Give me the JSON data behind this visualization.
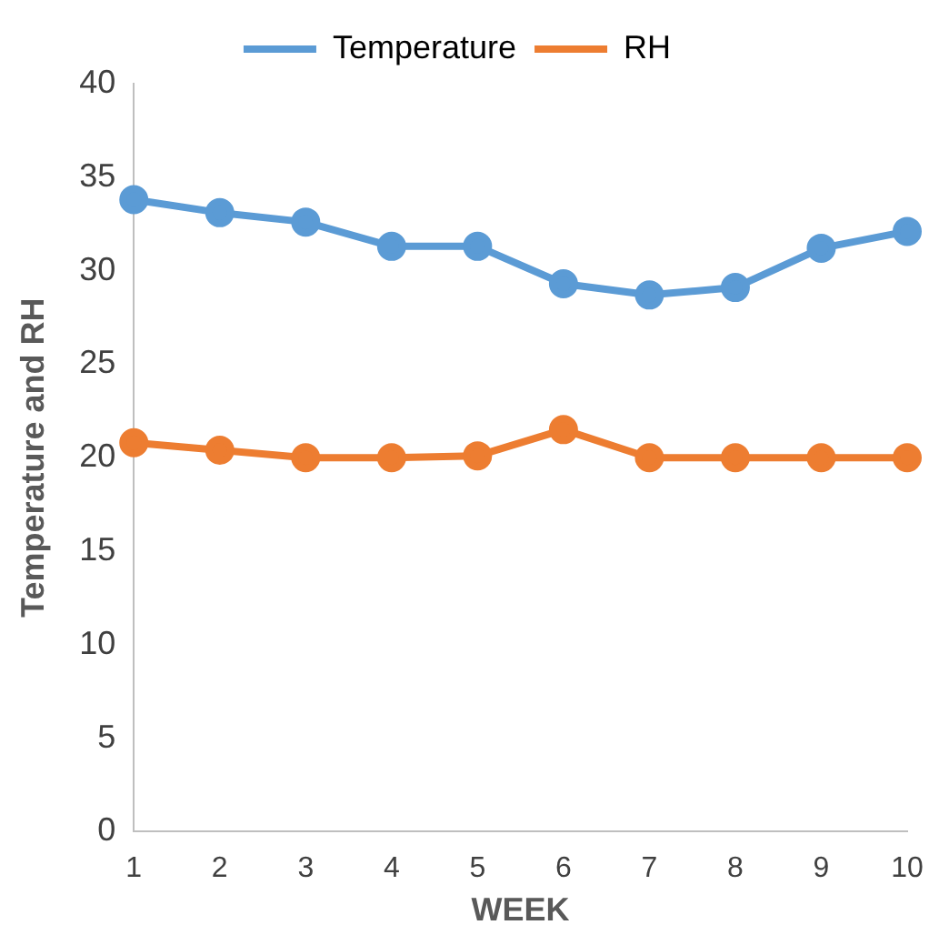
{
  "chart_data": {
    "type": "line",
    "xlabel": "WEEK",
    "ylabel": "Temperature and RH",
    "categories": [
      "1",
      "2",
      "3",
      "4",
      "5",
      "6",
      "7",
      "8",
      "9",
      "10"
    ],
    "series": [
      {
        "name": "Temperature",
        "color": "#5b9bd5",
        "values": [
          33.8,
          33.1,
          32.6,
          31.3,
          31.3,
          29.3,
          28.7,
          29.1,
          31.2,
          32.1
        ]
      },
      {
        "name": "RH",
        "color": "#ed7d31",
        "values": [
          20.8,
          20.4,
          20.0,
          20.0,
          20.1,
          21.5,
          20.0,
          20.0,
          20.0,
          20.0
        ]
      }
    ],
    "ylim": [
      0,
      40
    ],
    "yticks": [
      0,
      5,
      10,
      15,
      20,
      25,
      30,
      35,
      40
    ],
    "grid": false,
    "legend": "top",
    "marker": "circle",
    "line_style": "solid"
  }
}
